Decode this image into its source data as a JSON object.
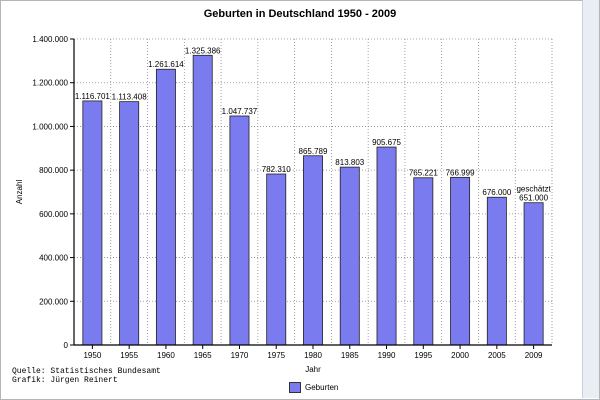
{
  "chart_data": {
    "type": "bar",
    "title": "Geburten in Deutschland 1950 - 2009",
    "xlabel": "Jahr",
    "ylabel": "Anzahl",
    "ylim": [
      0,
      1400000
    ],
    "yticks": [
      "0",
      "200.000",
      "400.000",
      "600.000",
      "800.000",
      "1.000.000",
      "1.200.000",
      "1.400.000"
    ],
    "categories": [
      "1950",
      "1955",
      "1960",
      "1965",
      "1970",
      "1975",
      "1980",
      "1985",
      "1990",
      "1995",
      "2000",
      "2005",
      "2009"
    ],
    "series": [
      {
        "name": "Geburten",
        "values": [
          1116701,
          1113408,
          1261614,
          1325386,
          1047737,
          782310,
          865789,
          813803,
          905675,
          765221,
          766999,
          676000,
          651000
        ],
        "labels": [
          "1.116.701",
          "1.113.408",
          "1.261.614",
          "1.325.386",
          "1.047.737",
          "782.310",
          "865.789",
          "813.803",
          "905.675",
          "765.221",
          "766.999",
          "676.000",
          "651.000"
        ]
      }
    ],
    "annotations": [
      {
        "category": "2009",
        "text": "geschätzt"
      }
    ],
    "grid": true,
    "legend_position": "bottom-center",
    "bar_color": "#7b7bf0"
  },
  "source_lines": [
    "Quelle: Statistisches Bundesamt",
    "Grafik: Jürgen Reinert"
  ]
}
